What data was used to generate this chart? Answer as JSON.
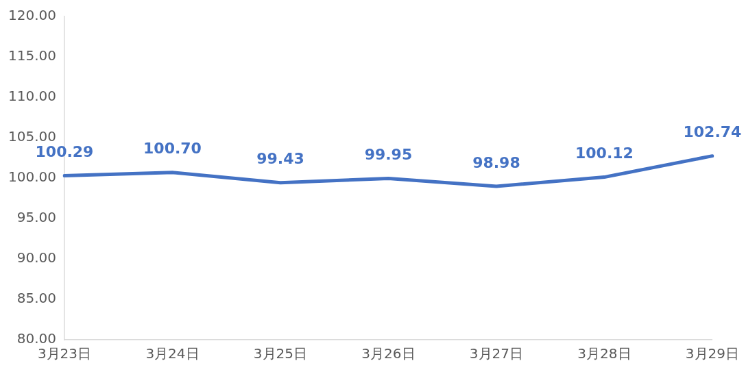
{
  "chart_data": {
    "type": "line",
    "categories": [
      "3月23日",
      "3月24日",
      "3月25日",
      "3月26日",
      "3月27日",
      "3月28日",
      "3月29日"
    ],
    "series": [
      {
        "color": "#4472c4",
        "values": [
          100.29,
          100.7,
          99.43,
          99.95,
          98.98,
          100.12,
          102.74
        ]
      }
    ],
    "ylim": [
      80,
      120
    ],
    "yticks": [
      {
        "value": 80,
        "label": "80.00"
      },
      {
        "value": 85,
        "label": "85.00"
      },
      {
        "value": 90,
        "label": "90.00"
      },
      {
        "value": 95,
        "label": "95.00"
      },
      {
        "value": 100,
        "label": "100.00"
      },
      {
        "value": 105,
        "label": "105.00"
      },
      {
        "value": 110,
        "label": "110.00"
      },
      {
        "value": 115,
        "label": "115.00"
      },
      {
        "value": 120,
        "label": "120.00"
      }
    ],
    "value_labels": [
      "100.29",
      "100.70",
      "99.43",
      "99.95",
      "98.98",
      "100.12",
      "102.74"
    ],
    "grid": false,
    "legend": false,
    "marker": "none",
    "line_style": "solid"
  }
}
